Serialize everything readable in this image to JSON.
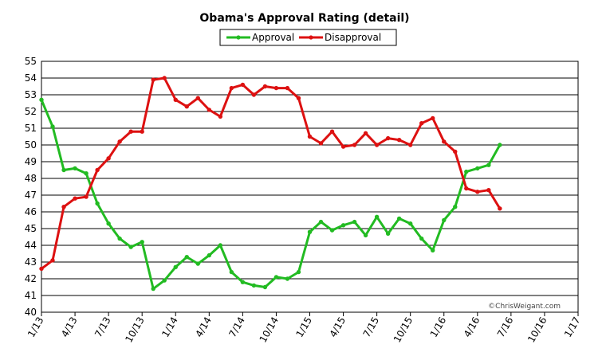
{
  "chart_data": {
    "type": "line",
    "title": "Obama's Approval Rating (detail)",
    "credit": "©ChrisWeigant.com",
    "ylim": [
      40,
      55
    ],
    "yticks": [
      40,
      41,
      42,
      43,
      44,
      45,
      46,
      47,
      48,
      49,
      50,
      51,
      52,
      53,
      54,
      55
    ],
    "x_ticks": [
      "1/13",
      "4/13",
      "7/13",
      "10/13",
      "1/14",
      "4/14",
      "7/14",
      "10/14",
      "1/15",
      "4/15",
      "7/15",
      "10/15",
      "1/16",
      "4/16",
      "7/16",
      "10/16",
      "1/17"
    ],
    "x_months": [
      "2013-01",
      "2013-02",
      "2013-03",
      "2013-04",
      "2013-05",
      "2013-06",
      "2013-07",
      "2013-08",
      "2013-09",
      "2013-10",
      "2013-11",
      "2013-12",
      "2014-01",
      "2014-02",
      "2014-03",
      "2014-04",
      "2014-05",
      "2014-06",
      "2014-07",
      "2014-08",
      "2014-09",
      "2014-10",
      "2014-11",
      "2014-12",
      "2015-01",
      "2015-02",
      "2015-03",
      "2015-04",
      "2015-05",
      "2015-06",
      "2015-07",
      "2015-08",
      "2015-09",
      "2015-10",
      "2015-11",
      "2015-12",
      "2016-01",
      "2016-02",
      "2016-03",
      "2016-04",
      "2016-05",
      "2016-06"
    ],
    "grid": true,
    "legend_position": "top-center",
    "series": [
      {
        "name": "Approval",
        "color": "#22bb22",
        "values": [
          52.7,
          51.1,
          48.5,
          48.6,
          48.3,
          46.5,
          45.3,
          44.4,
          43.9,
          44.2,
          41.4,
          41.9,
          42.7,
          43.3,
          42.9,
          43.4,
          44.0,
          42.4,
          41.8,
          41.6,
          41.5,
          42.1,
          42.0,
          42.4,
          44.8,
          45.4,
          44.9,
          45.2,
          45.4,
          44.6,
          45.7,
          44.7,
          45.6,
          45.3,
          44.4,
          43.7,
          45.5,
          46.3,
          48.4,
          48.6,
          48.8,
          50.0
        ]
      },
      {
        "name": "Disapproval",
        "color": "#dd1111",
        "values": [
          42.6,
          43.1,
          46.3,
          46.8,
          46.9,
          48.5,
          49.2,
          50.2,
          50.8,
          50.8,
          53.9,
          54.0,
          52.7,
          52.3,
          52.8,
          52.1,
          51.7,
          53.4,
          53.6,
          53.0,
          53.5,
          53.4,
          53.4,
          52.8,
          50.5,
          50.1,
          50.8,
          49.9,
          50.0,
          50.7,
          50.0,
          50.4,
          50.3,
          50.0,
          51.3,
          51.6,
          50.2,
          49.6,
          47.4,
          47.2,
          47.3,
          46.2
        ]
      }
    ]
  }
}
